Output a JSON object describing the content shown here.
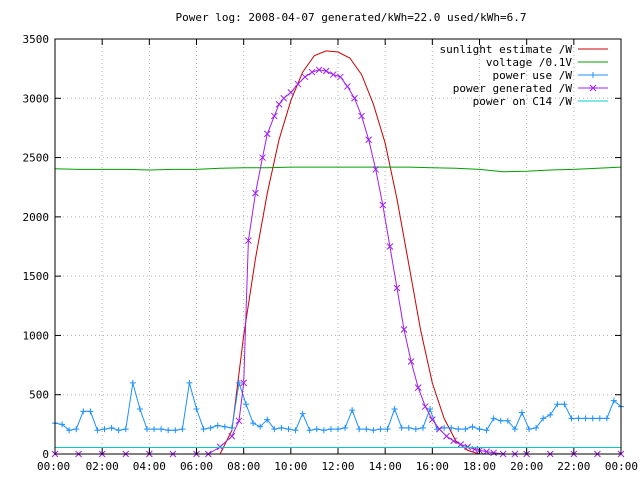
{
  "chart_data": {
    "type": "line",
    "title": "Power log: 2008-04-07 generated/kWh=22.0 used/kWh=6.7",
    "xlabel": "",
    "ylabel": "",
    "x_ticks": [
      "00:00",
      "02:00",
      "04:00",
      "06:00",
      "08:00",
      "10:00",
      "12:00",
      "14:00",
      "16:00",
      "18:00",
      "20:00",
      "22:00",
      "00:00"
    ],
    "x_range_hours": [
      0,
      24
    ],
    "y_ticks": [
      0,
      500,
      1000,
      1500,
      2000,
      2500,
      3000,
      3500
    ],
    "ylim": [
      0,
      3500
    ],
    "grid": true,
    "legend_position": "top-right",
    "series": [
      {
        "name": "sunlight estimate /W",
        "color": "#cc0000",
        "marker": "none",
        "x": [
          6.5,
          7.0,
          7.5,
          8.0,
          8.5,
          9.0,
          9.5,
          10.0,
          10.5,
          11.0,
          11.5,
          12.0,
          12.5,
          13.0,
          13.5,
          14.0,
          14.5,
          15.0,
          15.5,
          16.0,
          16.5,
          17.0,
          17.5,
          18.0,
          18.5,
          19.0,
          19.5
        ],
        "values": [
          0,
          0,
          200,
          1000,
          1650,
          2200,
          2650,
          2980,
          3220,
          3360,
          3400,
          3390,
          3340,
          3200,
          2950,
          2620,
          2150,
          1600,
          1050,
          600,
          300,
          110,
          30,
          0,
          0,
          0,
          0
        ]
      },
      {
        "name": "voltage /0.1V",
        "color": "#00a000",
        "marker": "none",
        "x": [
          0,
          1,
          2,
          3,
          4,
          5,
          6,
          7,
          8,
          9,
          10,
          11,
          12,
          13,
          14,
          15,
          16,
          17,
          18,
          19,
          20,
          21,
          22,
          23,
          24
        ],
        "values": [
          2405,
          2400,
          2400,
          2400,
          2395,
          2400,
          2400,
          2410,
          2415,
          2415,
          2420,
          2420,
          2420,
          2420,
          2420,
          2420,
          2415,
          2410,
          2400,
          2380,
          2385,
          2395,
          2400,
          2410,
          2420
        ]
      },
      {
        "name": "power use /W",
        "color": "#1e90ff",
        "marker": "plus",
        "x": [
          0.0,
          0.3,
          0.6,
          0.9,
          1.2,
          1.5,
          1.8,
          2.1,
          2.4,
          2.7,
          3.0,
          3.3,
          3.6,
          3.9,
          4.2,
          4.5,
          4.8,
          5.1,
          5.4,
          5.7,
          6.0,
          6.3,
          6.6,
          6.9,
          7.2,
          7.5,
          7.8,
          8.1,
          8.4,
          8.7,
          9.0,
          9.3,
          9.6,
          9.9,
          10.2,
          10.5,
          10.8,
          11.1,
          11.4,
          11.7,
          12.0,
          12.3,
          12.6,
          12.9,
          13.2,
          13.5,
          13.8,
          14.1,
          14.4,
          14.7,
          15.0,
          15.3,
          15.6,
          15.9,
          16.2,
          16.5,
          16.8,
          17.1,
          17.4,
          17.7,
          18.0,
          18.3,
          18.6,
          18.9,
          19.2,
          19.5,
          19.8,
          20.1,
          20.4,
          20.7,
          21.0,
          21.3,
          21.6,
          21.9,
          22.2,
          22.5,
          22.8,
          23.1,
          23.4,
          23.7,
          24.0
        ],
        "values": [
          260,
          250,
          200,
          210,
          360,
          360,
          200,
          210,
          220,
          200,
          210,
          600,
          380,
          210,
          210,
          210,
          200,
          200,
          210,
          600,
          380,
          210,
          220,
          240,
          230,
          220,
          600,
          420,
          260,
          230,
          290,
          210,
          220,
          210,
          200,
          340,
          200,
          210,
          200,
          210,
          210,
          220,
          370,
          210,
          210,
          200,
          210,
          210,
          380,
          220,
          220,
          210,
          220,
          380,
          210,
          220,
          220,
          210,
          210,
          230,
          210,
          200,
          300,
          280,
          280,
          210,
          350,
          210,
          220,
          300,
          330,
          420,
          420,
          300,
          300,
          300,
          300,
          300,
          300,
          450,
          400
        ]
      },
      {
        "name": "power generated /W",
        "color": "#a020f0",
        "marker": "cross",
        "x": [
          0.0,
          1.0,
          2.0,
          3.0,
          4.0,
          5.0,
          6.0,
          6.5,
          7.0,
          7.5,
          7.8,
          8.0,
          8.2,
          8.5,
          8.8,
          9.0,
          9.3,
          9.5,
          9.7,
          10.0,
          10.3,
          10.6,
          10.9,
          11.2,
          11.5,
          11.8,
          12.1,
          12.4,
          12.7,
          13.0,
          13.3,
          13.6,
          13.9,
          14.2,
          14.5,
          14.8,
          15.1,
          15.4,
          15.7,
          16.0,
          16.3,
          16.6,
          16.9,
          17.2,
          17.5,
          17.8,
          18.0,
          18.3,
          18.6,
          19.0,
          19.5,
          20.0,
          21.0,
          22.0,
          23.0,
          24.0
        ],
        "values": [
          0,
          0,
          0,
          0,
          0,
          0,
          0,
          0,
          60,
          150,
          280,
          600,
          1800,
          2200,
          2500,
          2700,
          2850,
          2950,
          3000,
          3050,
          3120,
          3180,
          3220,
          3240,
          3230,
          3200,
          3180,
          3100,
          3000,
          2850,
          2650,
          2400,
          2100,
          1750,
          1400,
          1050,
          780,
          560,
          400,
          290,
          210,
          150,
          110,
          80,
          60,
          40,
          30,
          20,
          10,
          0,
          0,
          0,
          0,
          0,
          0,
          0
        ]
      },
      {
        "name": "power on C14 /W",
        "color": "#00cccc",
        "marker": "none",
        "x": [
          0,
          2,
          4,
          6,
          8,
          10,
          12,
          14,
          16,
          18,
          20,
          22,
          24
        ],
        "values": [
          55,
          55,
          55,
          55,
          55,
          55,
          55,
          55,
          55,
          55,
          55,
          55,
          55
        ]
      }
    ]
  }
}
